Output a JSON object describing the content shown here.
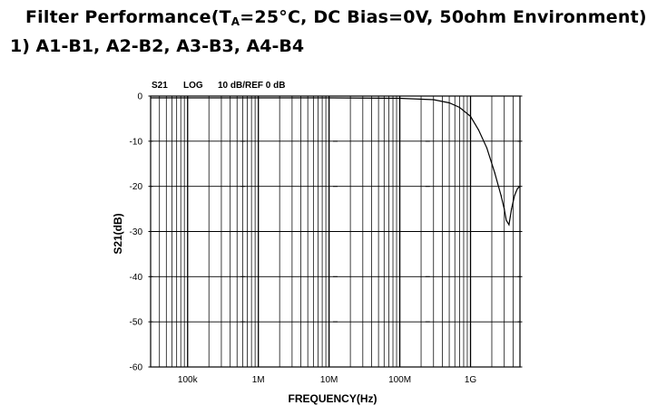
{
  "heading": {
    "prefix": "Filter Performance(T",
    "subscript": "A",
    "suffix": "=25°C, DC Bias=0V, 50ohm Environment)"
  },
  "subheading": "1) A1-B1, A2-B2, A3-B3, A4-B4",
  "chart_data": {
    "type": "line",
    "header": {
      "param": "S21",
      "format": "LOG",
      "scale": "10 dB/REF 0 dB"
    },
    "xlabel": "FREQUENCY(Hz)",
    "ylabel": "S21(dB)",
    "xscale": "log",
    "xlim": [
      30000,
      5000000000
    ],
    "ylim": [
      -60,
      0
    ],
    "yticks": [
      "0",
      "-10",
      "-20",
      "-30",
      "-40",
      "-50",
      "-60"
    ],
    "xticks": [
      {
        "value": 100000,
        "label": "100k"
      },
      {
        "value": 1000000,
        "label": "1M"
      },
      {
        "value": 10000000,
        "label": "10M"
      },
      {
        "value": 100000000,
        "label": "100M"
      },
      {
        "value": 1000000000,
        "label": "1G"
      }
    ],
    "grid": true,
    "series": [
      {
        "color": "#000000",
        "x": [
          30000,
          100000,
          1000000,
          10000000,
          100000000,
          300000000,
          500000000,
          700000000,
          1000000000,
          1300000000,
          1700000000,
          2200000000,
          2700000000,
          3000000000,
          3200000000,
          3500000000,
          3800000000,
          4200000000,
          4600000000,
          5000000000
        ],
        "y": [
          -0.4,
          -0.4,
          -0.4,
          -0.4,
          -0.5,
          -0.8,
          -1.5,
          -2.5,
          -4.5,
          -7.5,
          -11.5,
          -17,
          -22,
          -25,
          -27.5,
          -28.5,
          -25,
          -22,
          -20.5,
          -20
        ]
      }
    ]
  }
}
